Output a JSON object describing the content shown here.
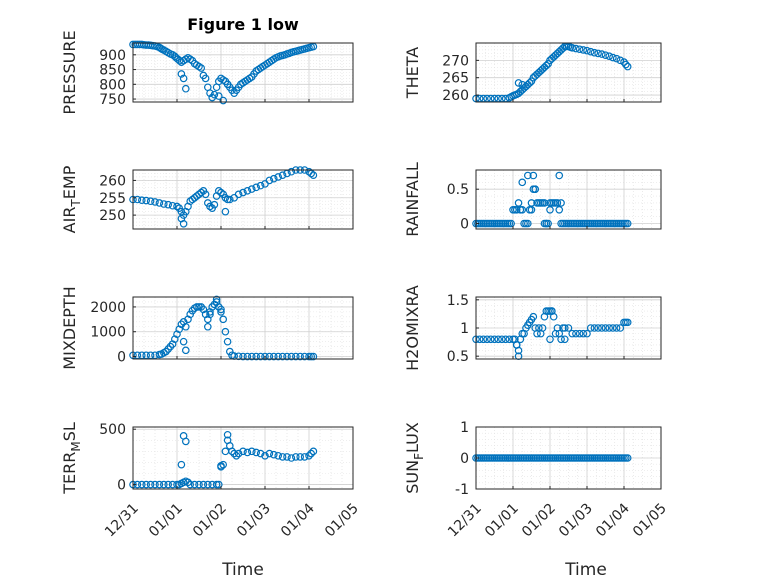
{
  "figure": {
    "title": "Figure 1 low",
    "xlabel": "Time",
    "marker_color": "#0072BD",
    "xticks": [
      "12/31",
      "01/01",
      "01/02",
      "01/03",
      "01/04",
      "01/05"
    ]
  },
  "chart_data": [
    {
      "type": "scatter",
      "name": "pressure",
      "ylabel": "PRESSURE",
      "ylim": [
        740,
        940
      ],
      "yticks": [
        "750",
        "800",
        "850",
        "900"
      ],
      "ytick_values": [
        750,
        800,
        850,
        900
      ],
      "t": [
        0,
        0.05,
        0.1,
        0.15,
        0.2,
        0.25,
        0.3,
        0.35,
        0.4,
        0.45,
        0.5,
        0.55,
        0.6,
        0.63,
        0.66,
        0.7,
        0.75,
        0.8,
        0.85,
        0.9,
        0.95,
        0.98,
        1.02,
        1.06,
        1.1,
        1.15,
        1.2,
        1.25,
        1.3,
        1.35,
        1.4,
        1.45,
        1.5,
        1.55,
        1.6,
        1.65,
        1.7,
        1.75,
        1.8,
        1.85,
        1.9,
        1.95,
        2.0,
        2.05,
        2.1,
        2.15,
        2.2,
        2.25,
        2.3,
        2.35,
        2.4,
        2.45,
        2.5,
        2.55,
        2.6,
        2.65,
        2.7,
        2.75,
        2.8,
        2.85,
        2.9,
        2.95,
        3.0,
        3.05,
        3.1,
        3.15,
        3.2,
        3.25,
        3.3,
        3.35,
        3.4,
        3.45,
        3.5,
        3.55,
        3.6,
        3.65,
        3.7,
        3.75,
        3.8,
        3.85,
        3.9,
        3.95,
        4.0,
        4.05,
        4.1
      ],
      "y": [
        935,
        935,
        935,
        935,
        935,
        934,
        933,
        933,
        932,
        931,
        930,
        928,
        925,
        922,
        919,
        916,
        912,
        907,
        903,
        900,
        895,
        890,
        885,
        880,
        875,
        880,
        885,
        890,
        885,
        880,
        870,
        865,
        860,
        855,
        830,
        820,
        790,
        770,
        755,
        765,
        790,
        810,
        820,
        815,
        810,
        800,
        790,
        780,
        770,
        780,
        790,
        800,
        805,
        810,
        815,
        820,
        825,
        835,
        845,
        850,
        855,
        860,
        865,
        870,
        875,
        880,
        885,
        890,
        893,
        896,
        898,
        900,
        903,
        905,
        908,
        910,
        912,
        914,
        916,
        918,
        920,
        922,
        924,
        926,
        928
      ],
      "extra_t": [
        1.1,
        1.15,
        1.2,
        1.95,
        2.05,
        2.15
      ],
      "extra_y": [
        835,
        820,
        785,
        760,
        745,
        800
      ]
    },
    {
      "type": "scatter",
      "name": "theta",
      "ylabel": "THETA",
      "ylim": [
        258,
        275
      ],
      "yticks": [
        "260",
        "265",
        "270"
      ],
      "ytick_values": [
        260,
        265,
        270
      ],
      "t": [
        0,
        0.1,
        0.2,
        0.3,
        0.4,
        0.5,
        0.6,
        0.7,
        0.8,
        0.9,
        0.95,
        1.0,
        1.05,
        1.1,
        1.15,
        1.2,
        1.25,
        1.3,
        1.35,
        1.4,
        1.45,
        1.5,
        1.55,
        1.6,
        1.65,
        1.7,
        1.75,
        1.8,
        1.85,
        1.9,
        1.95,
        2.0,
        2.05,
        2.1,
        2.15,
        2.2,
        2.25,
        2.3,
        2.35,
        2.4,
        2.45,
        2.5,
        2.55,
        2.6,
        2.7,
        2.8,
        2.9,
        3.0,
        3.1,
        3.2,
        3.3,
        3.4,
        3.5,
        3.6,
        3.7,
        3.8,
        3.9,
        4.0,
        4.05,
        4.1
      ],
      "y": [
        259,
        259,
        259,
        259,
        259,
        259,
        259,
        259,
        259,
        259.2,
        259.5,
        259.8,
        260,
        260.2,
        260.5,
        261,
        261.5,
        262,
        262.5,
        263,
        263.5,
        264,
        265,
        265.5,
        266,
        266.5,
        267,
        267.5,
        268,
        268.5,
        269,
        270,
        270.5,
        271,
        271.5,
        272,
        272.5,
        273,
        273.5,
        274,
        274,
        274,
        273.8,
        273.6,
        273.4,
        273.2,
        273,
        272.8,
        272.5,
        272.2,
        272,
        271.8,
        271.5,
        271.2,
        270.8,
        270.5,
        270,
        269.5,
        268.8,
        268.2
      ],
      "extra_t": [
        1.15,
        1.25
      ],
      "extra_y": [
        263.5,
        263
      ]
    },
    {
      "type": "scatter",
      "name": "air_temp",
      "ylabel": "AIR_TEMP",
      "ylim": [
        246,
        263
      ],
      "yticks": [
        "250",
        "255",
        "260"
      ],
      "ytick_values": [
        250,
        255,
        260
      ],
      "t": [
        0,
        0.1,
        0.2,
        0.3,
        0.4,
        0.5,
        0.6,
        0.7,
        0.8,
        0.9,
        1.0,
        1.05,
        1.1,
        1.15,
        1.2,
        1.25,
        1.3,
        1.35,
        1.4,
        1.45,
        1.5,
        1.55,
        1.6,
        1.65,
        1.7,
        1.75,
        1.8,
        1.85,
        1.9,
        1.95,
        2.0,
        2.05,
        2.1,
        2.15,
        2.2,
        2.3,
        2.4,
        2.5,
        2.6,
        2.7,
        2.8,
        2.9,
        3.0,
        3.1,
        3.2,
        3.3,
        3.4,
        3.5,
        3.6,
        3.7,
        3.8,
        3.9,
        4.0,
        4.05,
        4.1
      ],
      "y": [
        254.5,
        254.5,
        254.3,
        254.2,
        254,
        253.8,
        253.5,
        253.2,
        253,
        252.7,
        252.5,
        252,
        251,
        250,
        251,
        252.5,
        254,
        254.5,
        255,
        255.5,
        256,
        256.5,
        257,
        256,
        253.5,
        252.5,
        252,
        253,
        255.5,
        257,
        256.5,
        256,
        255,
        254.5,
        254.5,
        255,
        256,
        256.5,
        257,
        257.5,
        258,
        258.5,
        259,
        260,
        260.5,
        261,
        261.5,
        262,
        262.5,
        263,
        263,
        263,
        262.5,
        262,
        261.5
      ],
      "extra_t": [
        1.1,
        1.15,
        2.1
      ],
      "extra_y": [
        249,
        247.5,
        251
      ]
    },
    {
      "type": "scatter",
      "name": "rainfall",
      "ylabel": "RAINFALL",
      "ylim": [
        -0.08,
        0.78
      ],
      "yticks": [
        "0",
        "0.5"
      ],
      "ytick_values": [
        0,
        0.5
      ],
      "t": [
        0,
        0.05,
        0.1,
        0.15,
        0.2,
        0.25,
        0.3,
        0.35,
        0.4,
        0.45,
        0.5,
        0.55,
        0.6,
        0.65,
        0.7,
        0.75,
        0.8,
        0.85,
        0.9,
        0.95,
        1.0,
        1.05,
        1.1,
        1.15,
        1.2,
        1.25,
        1.3,
        1.35,
        1.4,
        1.45,
        1.5,
        1.55,
        1.6,
        1.65,
        1.7,
        1.75,
        1.8,
        1.85,
        1.9,
        1.95,
        2.0,
        2.05,
        2.1,
        2.15,
        2.2,
        2.25,
        2.3,
        2.35,
        2.4,
        2.45,
        2.5,
        2.55,
        2.6,
        2.65,
        2.7,
        2.75,
        2.8,
        2.85,
        2.9,
        2.95,
        3.0,
        3.05,
        3.1,
        3.15,
        3.2,
        3.25,
        3.3,
        3.35,
        3.4,
        3.45,
        3.5,
        3.55,
        3.6,
        3.65,
        3.7,
        3.75,
        3.8,
        3.85,
        3.9,
        3.95,
        4.0,
        4.05,
        4.1
      ],
      "y": [
        0,
        0,
        0,
        0,
        0,
        0,
        0,
        0,
        0,
        0,
        0,
        0,
        0,
        0,
        0,
        0,
        0,
        0,
        0,
        0,
        0.2,
        0.2,
        0.2,
        0.3,
        0.2,
        0.2,
        0,
        0,
        0,
        0.2,
        0.3,
        0.5,
        0.5,
        0.3,
        0.3,
        0.3,
        0.3,
        0.3,
        0,
        0,
        0.3,
        0.3,
        0.3,
        0.3,
        0.3,
        0.2,
        0,
        0,
        0,
        0,
        0,
        0,
        0,
        0,
        0,
        0,
        0,
        0,
        0,
        0,
        0,
        0,
        0,
        0,
        0,
        0,
        0,
        0,
        0,
        0,
        0,
        0,
        0,
        0,
        0,
        0,
        0,
        0,
        0,
        0,
        0,
        0,
        0
      ],
      "extra_t": [
        1.25,
        1.4,
        1.55,
        1.6,
        2.25,
        2.3,
        1.85,
        1.9,
        2.0,
        1.5
      ],
      "extra_y": [
        0.6,
        0.7,
        0.7,
        0.5,
        0.7,
        0.3,
        0,
        0,
        0.2,
        0.2
      ]
    },
    {
      "type": "scatter",
      "name": "mixdepth",
      "ylabel": "MIXDEPTH",
      "ylim": [
        -100,
        2400
      ],
      "yticks": [
        "0",
        "1000",
        "2000"
      ],
      "ytick_values": [
        0,
        1000,
        2000
      ],
      "t": [
        0,
        0.1,
        0.2,
        0.3,
        0.4,
        0.5,
        0.6,
        0.65,
        0.7,
        0.75,
        0.8,
        0.85,
        0.9,
        0.95,
        1.0,
        1.05,
        1.1,
        1.15,
        1.2,
        1.25,
        1.3,
        1.35,
        1.4,
        1.45,
        1.5,
        1.55,
        1.6,
        1.65,
        1.7,
        1.75,
        1.8,
        1.85,
        1.9,
        1.95,
        2.0,
        2.05,
        2.1,
        2.15,
        2.2,
        2.25,
        2.3,
        2.4,
        2.5,
        2.6,
        2.7,
        2.8,
        2.9,
        3.0,
        3.1,
        3.2,
        3.3,
        3.4,
        3.5,
        3.6,
        3.7,
        3.8,
        3.9,
        4.0,
        4.05,
        4.1
      ],
      "y": [
        50,
        50,
        50,
        50,
        50,
        50,
        80,
        100,
        150,
        200,
        300,
        400,
        500,
        700,
        900,
        1100,
        1300,
        1400,
        1200,
        1500,
        1700,
        1850,
        1950,
        2000,
        2000,
        2000,
        1900,
        1700,
        1500,
        1800,
        2000,
        2100,
        2200,
        2000,
        1800,
        1500,
        1000,
        600,
        200,
        50,
        20,
        10,
        0,
        0,
        0,
        0,
        0,
        0,
        0,
        0,
        0,
        0,
        0,
        0,
        0,
        0,
        0,
        0,
        0,
        0
      ],
      "extra_t": [
        1.15,
        1.2,
        1.7,
        1.75,
        1.9,
        2.0
      ],
      "extra_y": [
        600,
        250,
        1200,
        1700,
        2300,
        1900
      ]
    },
    {
      "type": "scatter",
      "name": "h2omixra",
      "ylabel": "H2OMIXRA",
      "ylim": [
        0.45,
        1.55
      ],
      "yticks": [
        "0.5",
        "1",
        "1.5"
      ],
      "ytick_values": [
        0.5,
        1,
        1.5
      ],
      "t": [
        0,
        0.1,
        0.2,
        0.3,
        0.4,
        0.5,
        0.6,
        0.7,
        0.8,
        0.9,
        1.0,
        1.05,
        1.1,
        1.15,
        1.2,
        1.25,
        1.3,
        1.35,
        1.4,
        1.45,
        1.5,
        1.55,
        1.6,
        1.65,
        1.7,
        1.75,
        1.8,
        1.85,
        1.9,
        1.95,
        2.0,
        2.05,
        2.1,
        2.15,
        2.2,
        2.25,
        2.3,
        2.35,
        2.4,
        2.5,
        2.6,
        2.7,
        2.8,
        2.9,
        3.0,
        3.1,
        3.2,
        3.3,
        3.4,
        3.5,
        3.6,
        3.7,
        3.8,
        3.9,
        4.0,
        4.05,
        4.1
      ],
      "y": [
        0.8,
        0.8,
        0.8,
        0.8,
        0.8,
        0.8,
        0.8,
        0.8,
        0.8,
        0.8,
        0.8,
        0.8,
        0.7,
        0.6,
        0.8,
        0.9,
        0.9,
        1.0,
        1.05,
        1.1,
        1.15,
        1.2,
        1.0,
        0.9,
        1.0,
        0.9,
        1.0,
        1.2,
        1.3,
        1.3,
        1.3,
        1.3,
        1.2,
        0.9,
        1.0,
        0.9,
        0.8,
        1.0,
        1.0,
        1.0,
        0.9,
        0.9,
        0.9,
        0.9,
        0.9,
        1.0,
        1.0,
        1.0,
        1.0,
        1.0,
        1.0,
        1.0,
        1.0,
        1.0,
        1.1,
        1.1,
        1.1
      ],
      "extra_t": [
        1.15,
        1.1,
        2.0,
        2.05,
        2.4
      ],
      "extra_y": [
        0.5,
        0.7,
        0.8,
        1.3,
        0.8
      ]
    },
    {
      "type": "scatter",
      "name": "terr_msl",
      "ylabel": "TERR_MSL",
      "ylim": [
        -40,
        520
      ],
      "yticks": [
        "0",
        "500"
      ],
      "ytick_values": [
        0,
        500
      ],
      "t": [
        0,
        0.1,
        0.2,
        0.3,
        0.4,
        0.5,
        0.6,
        0.7,
        0.8,
        0.9,
        1.0,
        1.05,
        1.1,
        1.15,
        1.2,
        1.25,
        1.3,
        1.4,
        1.5,
        1.6,
        1.7,
        1.8,
        1.9,
        1.95,
        2.0,
        2.05,
        2.1,
        2.15,
        2.2,
        2.25,
        2.3,
        2.35,
        2.4,
        2.5,
        2.6,
        2.7,
        2.8,
        2.9,
        3.0,
        3.1,
        3.2,
        3.3,
        3.4,
        3.5,
        3.6,
        3.7,
        3.8,
        3.9,
        4.0,
        4.05,
        4.1
      ],
      "y": [
        0,
        0,
        0,
        0,
        0,
        0,
        0,
        0,
        0,
        0,
        0,
        0,
        10,
        20,
        30,
        20,
        0,
        0,
        0,
        0,
        0,
        0,
        0,
        0,
        170,
        180,
        300,
        400,
        350,
        300,
        280,
        260,
        280,
        300,
        290,
        300,
        290,
        280,
        260,
        280,
        270,
        260,
        250,
        250,
        240,
        250,
        250,
        250,
        260,
        280,
        300
      ],
      "extra_t": [
        1.1,
        1.15,
        1.2,
        2.0,
        2.15
      ],
      "extra_y": [
        180,
        440,
        390,
        160,
        450
      ]
    },
    {
      "type": "scatter",
      "name": "sun_flux",
      "ylabel": "SUN_FLUX",
      "ylim": [
        -1,
        1
      ],
      "yticks": [
        "-1",
        "0",
        "1"
      ],
      "ytick_values": [
        -1,
        0,
        1
      ],
      "t": [
        0,
        0.05,
        0.1,
        0.15,
        0.2,
        0.25,
        0.3,
        0.35,
        0.4,
        0.45,
        0.5,
        0.55,
        0.6,
        0.65,
        0.7,
        0.75,
        0.8,
        0.85,
        0.9,
        0.95,
        1.0,
        1.05,
        1.1,
        1.15,
        1.2,
        1.25,
        1.3,
        1.35,
        1.4,
        1.45,
        1.5,
        1.55,
        1.6,
        1.65,
        1.7,
        1.75,
        1.8,
        1.85,
        1.9,
        1.95,
        2.0,
        2.05,
        2.1,
        2.15,
        2.2,
        2.25,
        2.3,
        2.35,
        2.4,
        2.45,
        2.5,
        2.55,
        2.6,
        2.65,
        2.7,
        2.75,
        2.8,
        2.85,
        2.9,
        2.95,
        3.0,
        3.05,
        3.1,
        3.15,
        3.2,
        3.25,
        3.3,
        3.35,
        3.4,
        3.45,
        3.5,
        3.55,
        3.6,
        3.65,
        3.7,
        3.75,
        3.8,
        3.85,
        3.9,
        3.95,
        4.0,
        4.05,
        4.1
      ],
      "y": [
        0,
        0,
        0,
        0,
        0,
        0,
        0,
        0,
        0,
        0,
        0,
        0,
        0,
        0,
        0,
        0,
        0,
        0,
        0,
        0,
        0,
        0,
        0,
        0,
        0,
        0,
        0,
        0,
        0,
        0,
        0,
        0,
        0,
        0,
        0,
        0,
        0,
        0,
        0,
        0,
        0,
        0,
        0,
        0,
        0,
        0,
        0,
        0,
        0,
        0,
        0,
        0,
        0,
        0,
        0,
        0,
        0,
        0,
        0,
        0,
        0,
        0,
        0,
        0,
        0,
        0,
        0,
        0,
        0,
        0,
        0,
        0,
        0,
        0,
        0,
        0,
        0,
        0,
        0,
        0,
        0,
        0,
        0
      ],
      "extra_t": [],
      "extra_y": []
    }
  ]
}
